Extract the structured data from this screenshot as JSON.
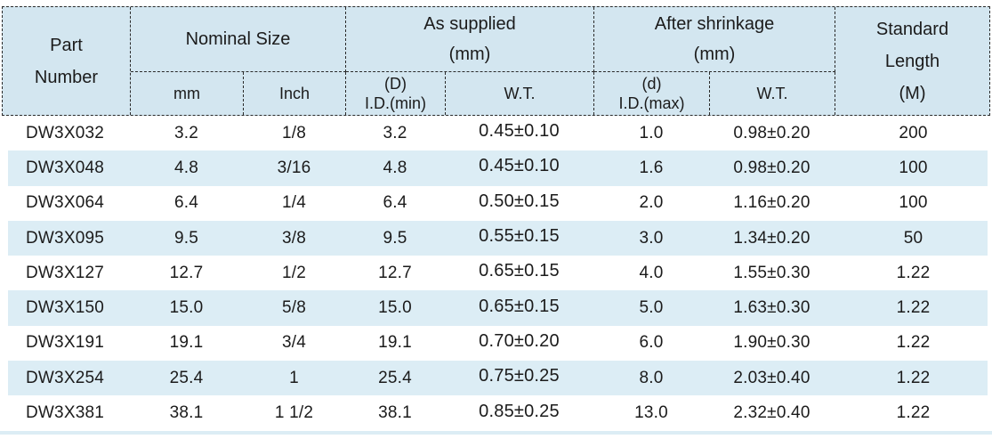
{
  "table": {
    "headers": {
      "part_number": "Part\nNumber",
      "nominal_size": "Nominal Size",
      "mm": "mm",
      "inch": "Inch",
      "as_supplied": "As supplied\n(mm)",
      "as_supplied_id": "(D)\nI.D.(min)",
      "as_supplied_wt": "W.T.",
      "after_shrinkage": "After shrinkage\n(mm)",
      "after_shrinkage_id": "(d)\nI.D.(max)",
      "after_shrinkage_wt": "W.T.",
      "standard_length": "Standard\nLength\n(M)"
    },
    "rows": [
      {
        "part": "DW3X032",
        "mm": "3.2",
        "inch": "1/8",
        "id_min": "3.2",
        "wt_supplied": "0.45±0.10",
        "id_max": "1.0",
        "wt_shrunk": "0.98±0.20",
        "length": "200"
      },
      {
        "part": "DW3X048",
        "mm": "4.8",
        "inch": "3/16",
        "id_min": "4.8",
        "wt_supplied": "0.45±0.10",
        "id_max": "1.6",
        "wt_shrunk": "0.98±0.20",
        "length": "100"
      },
      {
        "part": "DW3X064",
        "mm": "6.4",
        "inch": "1/4",
        "id_min": "6.4",
        "wt_supplied": "0.50±0.15",
        "id_max": "2.0",
        "wt_shrunk": "1.16±0.20",
        "length": "100"
      },
      {
        "part": "DW3X095",
        "mm": "9.5",
        "inch": "3/8",
        "id_min": "9.5",
        "wt_supplied": "0.55±0.15",
        "id_max": "3.0",
        "wt_shrunk": "1.34±0.20",
        "length": "50"
      },
      {
        "part": "DW3X127",
        "mm": "12.7",
        "inch": "1/2",
        "id_min": "12.7",
        "wt_supplied": "0.65±0.15",
        "id_max": "4.0",
        "wt_shrunk": "1.55±0.30",
        "length": "1.22"
      },
      {
        "part": "DW3X150",
        "mm": "15.0",
        "inch": "5/8",
        "id_min": "15.0",
        "wt_supplied": "0.65±0.15",
        "id_max": "5.0",
        "wt_shrunk": "1.63±0.30",
        "length": "1.22"
      },
      {
        "part": "DW3X191",
        "mm": "19.1",
        "inch": "3/4",
        "id_min": "19.1",
        "wt_supplied": "0.70±0.20",
        "id_max": "6.0",
        "wt_shrunk": "1.90±0.30",
        "length": "1.22"
      },
      {
        "part": "DW3X254",
        "mm": "25.4",
        "inch": "1",
        "id_min": "25.4",
        "wt_supplied": "0.75±0.25",
        "id_max": "8.0",
        "wt_shrunk": "2.03±0.40",
        "length": "1.22"
      },
      {
        "part": "DW3X381",
        "mm": "38.1",
        "inch": "1 1/2",
        "id_min": "38.1",
        "wt_supplied": "0.85±0.25",
        "id_max": "13.0",
        "wt_shrunk": "2.32±0.40",
        "length": "1.22"
      }
    ]
  },
  "colors": {
    "header_bg": "#d3e6f0",
    "stripe_bg": "#dcedf5",
    "border": "#2a2a2a",
    "text": "#1b1b1b"
  },
  "chart_data": {
    "type": "table",
    "title": "",
    "columns": [
      "Part Number",
      "Nominal Size mm",
      "Nominal Size Inch",
      "As supplied (mm) (D) I.D.(min)",
      "As supplied (mm) W.T.",
      "After shrinkage (mm) (d) I.D.(max)",
      "After shrinkage (mm) W.T.",
      "Standard Length (M)"
    ],
    "rows": [
      [
        "DW3X032",
        "3.2",
        "1/8",
        "3.2",
        "0.45±0.10",
        "1.0",
        "0.98±0.20",
        "200"
      ],
      [
        "DW3X048",
        "4.8",
        "3/16",
        "4.8",
        "0.45±0.10",
        "1.6",
        "0.98±0.20",
        "100"
      ],
      [
        "DW3X064",
        "6.4",
        "1/4",
        "6.4",
        "0.50±0.15",
        "2.0",
        "1.16±0.20",
        "100"
      ],
      [
        "DW3X095",
        "9.5",
        "3/8",
        "9.5",
        "0.55±0.15",
        "3.0",
        "1.34±0.20",
        "50"
      ],
      [
        "DW3X127",
        "12.7",
        "1/2",
        "12.7",
        "0.65±0.15",
        "4.0",
        "1.55±0.30",
        "1.22"
      ],
      [
        "DW3X150",
        "15.0",
        "5/8",
        "15.0",
        "0.65±0.15",
        "5.0",
        "1.63±0.30",
        "1.22"
      ],
      [
        "DW3X191",
        "19.1",
        "3/4",
        "19.1",
        "0.70±0.20",
        "6.0",
        "1.90±0.30",
        "1.22"
      ],
      [
        "DW3X254",
        "25.4",
        "1",
        "25.4",
        "0.75±0.25",
        "8.0",
        "2.03±0.40",
        "1.22"
      ],
      [
        "DW3X381",
        "38.1",
        "1 1/2",
        "38.1",
        "0.85±0.25",
        "13.0",
        "2.32±0.40",
        "1.22"
      ]
    ]
  }
}
